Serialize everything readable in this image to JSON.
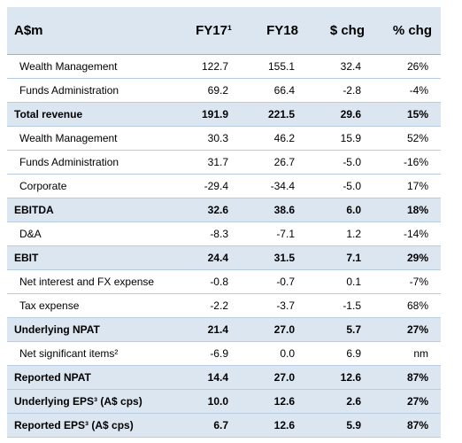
{
  "header": [
    "A$m",
    "FY17¹",
    "FY18",
    "$ chg",
    "% chg"
  ],
  "rows": [
    {
      "cells": [
        "Wealth Management",
        "122.7",
        "155.1",
        "32.4",
        "26%"
      ],
      "bold": false
    },
    {
      "cells": [
        "Funds Administration",
        "69.2",
        "66.4",
        "-2.8",
        "-4%"
      ],
      "bold": false
    },
    {
      "cells": [
        "Total revenue",
        "191.9",
        "221.5",
        "29.6",
        "15%"
      ],
      "bold": true
    },
    {
      "cells": [
        "Wealth Management",
        "30.3",
        "46.2",
        "15.9",
        "52%"
      ],
      "bold": false
    },
    {
      "cells": [
        "Funds Administration",
        "31.7",
        "26.7",
        "-5.0",
        "-16%"
      ],
      "bold": false
    },
    {
      "cells": [
        "Corporate",
        "-29.4",
        "-34.4",
        "-5.0",
        "17%"
      ],
      "bold": false
    },
    {
      "cells": [
        "EBITDA",
        "32.6",
        "38.6",
        "6.0",
        "18%"
      ],
      "bold": true
    },
    {
      "cells": [
        "D&A",
        "-8.3",
        "-7.1",
        "1.2",
        "-14%"
      ],
      "bold": false
    },
    {
      "cells": [
        "EBIT",
        "24.4",
        "31.5",
        "7.1",
        "29%"
      ],
      "bold": true
    },
    {
      "cells": [
        "Net interest and FX expense",
        "-0.8",
        "-0.7",
        "0.1",
        "-7%"
      ],
      "bold": false
    },
    {
      "cells": [
        "Tax expense",
        "-2.2",
        "-3.7",
        "-1.5",
        "68%"
      ],
      "bold": false
    },
    {
      "cells": [
        "Underlying NPAT",
        "21.4",
        "27.0",
        "5.7",
        "27%"
      ],
      "bold": true
    },
    {
      "cells": [
        "Net significant items²",
        "-6.9",
        "0.0",
        "6.9",
        "nm"
      ],
      "bold": false
    },
    {
      "cells": [
        "Reported NPAT",
        "14.4",
        "27.0",
        "12.6",
        "87%"
      ],
      "bold": true
    },
    {
      "cells": [
        "Underlying EPS³ (A$ cps)",
        "10.0",
        "12.6",
        "2.6",
        "27%"
      ],
      "bold": true
    },
    {
      "cells": [
        "Reported EPS³ (A$ cps)",
        "6.7",
        "12.6",
        "5.9",
        "87%"
      ],
      "bold": true
    }
  ]
}
